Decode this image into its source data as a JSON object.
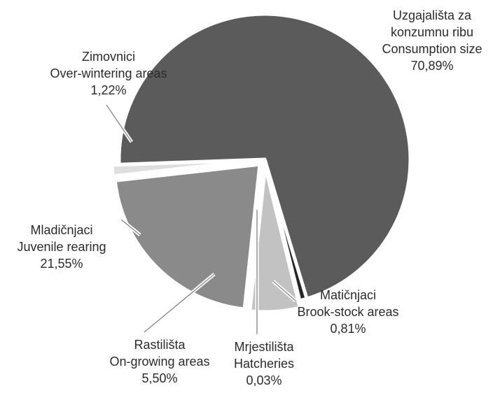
{
  "chart_data": {
    "type": "pie",
    "title": "",
    "slices": [
      {
        "label_lines": [
          "Uzgajališta za",
          "konzumnu ribu",
          "Consumption size"
        ],
        "value": 70.89,
        "value_text": "70,89%",
        "color": "#5b5b5b",
        "exploded": false
      },
      {
        "label_lines": [
          "Matičnjaci",
          "Brook-stock areas"
        ],
        "value": 0.81,
        "value_text": "0,81%",
        "color": "#262626",
        "exploded": false
      },
      {
        "label_lines": [
          "Mrjestilišta",
          "Hatcheries"
        ],
        "value": 0.03,
        "value_text": "0,03%",
        "color": "#e6e6e6",
        "exploded": true
      },
      {
        "label_lines": [
          "Rastilišta",
          "On-growing areas"
        ],
        "value": 5.5,
        "value_text": "5,50%",
        "color": "#c2c2c2",
        "exploded": true
      },
      {
        "label_lines": [
          "Mladičnjaci",
          "Juvenile rearing"
        ],
        "value": 21.55,
        "value_text": "21,55%",
        "color": "#8a8a8a",
        "exploded": true
      },
      {
        "label_lines": [
          "Zimovnici",
          "Over-wintering areas"
        ],
        "value": 1.22,
        "value_text": "1,22%",
        "color": "#dedede",
        "exploded": true
      }
    ]
  }
}
